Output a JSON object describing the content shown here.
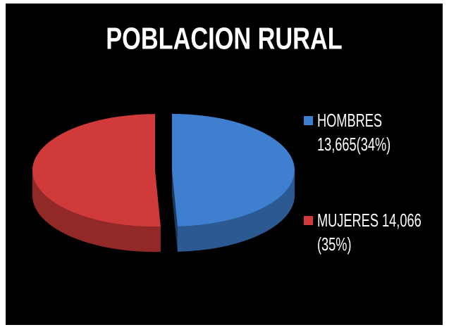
{
  "chart_data": {
    "type": "pie",
    "title": "POBLACION RURAL",
    "series": [
      {
        "name": "HOMBRES 13,665(34%)",
        "color": "#3f7fd0",
        "values": [
          13665
        ]
      },
      {
        "name": "MUJERES 14,066 (35%)",
        "color": "#d03a3a",
        "values": [
          14066
        ]
      }
    ],
    "legend": "right"
  }
}
